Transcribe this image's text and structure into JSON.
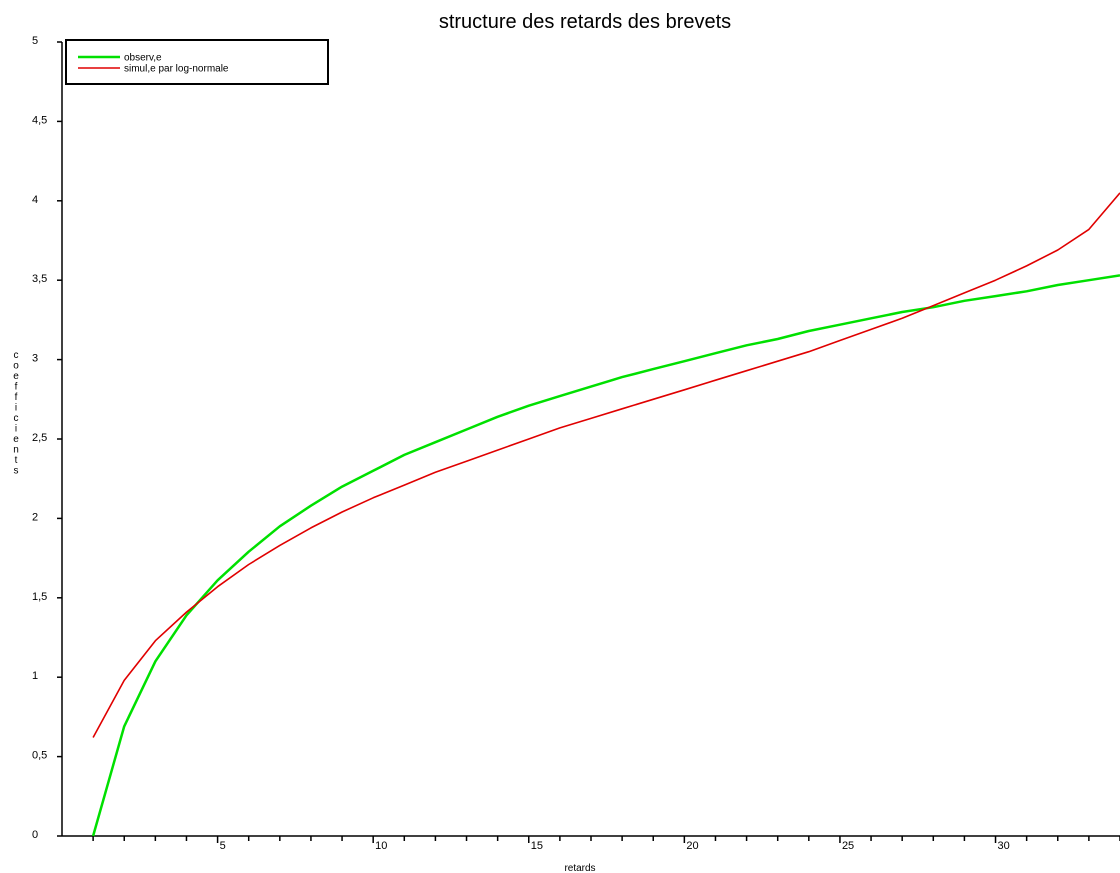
{
  "chart_data": {
    "type": "line",
    "title": "structure des retards des brevets",
    "xlabel": "retards",
    "ylabel": "coefficients",
    "x": [
      1,
      2,
      3,
      4,
      5,
      6,
      7,
      8,
      9,
      10,
      11,
      12,
      13,
      14,
      15,
      16,
      17,
      18,
      19,
      20,
      21,
      22,
      23,
      24,
      25,
      26,
      27,
      28,
      29,
      30,
      31,
      32,
      33,
      34
    ],
    "xlim": [
      0,
      34
    ],
    "ylim": [
      0,
      5
    ],
    "x_ticks": [
      5,
      10,
      15,
      20,
      25,
      30
    ],
    "y_ticks": [
      0,
      0.5,
      1,
      1.5,
      2,
      2.5,
      3,
      3.5,
      4,
      4.5,
      5
    ],
    "y_tick_labels": [
      "0",
      "0,5",
      "1",
      "1,5",
      "2",
      "2,5",
      "3",
      "3,5",
      "4",
      "4,5",
      "5"
    ],
    "x_tick_labels": [
      "5",
      "10",
      "15",
      "20",
      "25",
      "30"
    ],
    "grid": false,
    "legend_position": "top-left",
    "series": [
      {
        "name": "observ,e",
        "color": "#00e000",
        "values": [
          0.0,
          0.69,
          1.1,
          1.39,
          1.61,
          1.79,
          1.95,
          2.08,
          2.2,
          2.3,
          2.4,
          2.48,
          2.56,
          2.64,
          2.71,
          2.77,
          2.83,
          2.89,
          2.94,
          2.99,
          3.04,
          3.09,
          3.13,
          3.18,
          3.22,
          3.26,
          3.3,
          3.33,
          3.37,
          3.4,
          3.43,
          3.47,
          3.5,
          3.53
        ]
      },
      {
        "name": "simul,e par log-normale",
        "color": "#e00000",
        "values": [
          0.62,
          0.98,
          1.23,
          1.41,
          1.57,
          1.71,
          1.83,
          1.94,
          2.04,
          2.13,
          2.21,
          2.29,
          2.36,
          2.43,
          2.5,
          2.57,
          2.63,
          2.69,
          2.75,
          2.81,
          2.87,
          2.93,
          2.99,
          3.05,
          3.12,
          3.19,
          3.26,
          3.34,
          3.42,
          3.5,
          3.59,
          3.69,
          3.82,
          4.05
        ]
      }
    ]
  }
}
